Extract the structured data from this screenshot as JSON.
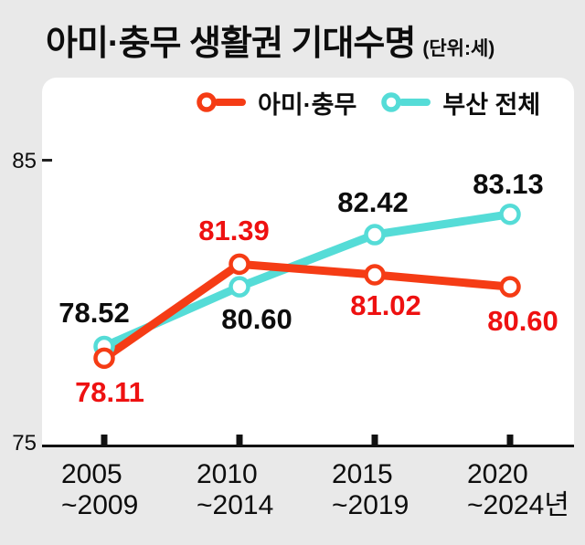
{
  "chart_data": {
    "type": "line",
    "title": "아미·충무 생활권 기대수명",
    "unit_label": "(단위:세)",
    "ylim": [
      75,
      85
    ],
    "y_ticks": [
      {
        "value": 85,
        "label": "85"
      },
      {
        "value": 75,
        "label": "75"
      }
    ],
    "categories": [
      {
        "line1": "2005",
        "line2": "~2009"
      },
      {
        "line1": "2010",
        "line2": "~2014"
      },
      {
        "line1": "2015",
        "line2": "~2019"
      },
      {
        "line1": "2020",
        "line2": "~2024년"
      }
    ],
    "legend_position": "top",
    "grid": false,
    "series": [
      {
        "name": "아미·충무",
        "color": "#f53c15",
        "label_color": "#ee1111",
        "values": [
          78.11,
          81.39,
          81.02,
          80.6
        ],
        "labels": [
          "78.11",
          "81.39",
          "81.02",
          "80.60"
        ]
      },
      {
        "name": "부산 전체",
        "color": "#55dcd7",
        "label_color": "#0d0d0d",
        "values": [
          78.52,
          80.6,
          82.42,
          83.13
        ],
        "labels": [
          "78.52",
          "80.60",
          "82.42",
          "83.13"
        ]
      }
    ],
    "colors": {
      "axis": "#111111",
      "panel": "#ffffff",
      "background": "#e9e9e9"
    }
  }
}
